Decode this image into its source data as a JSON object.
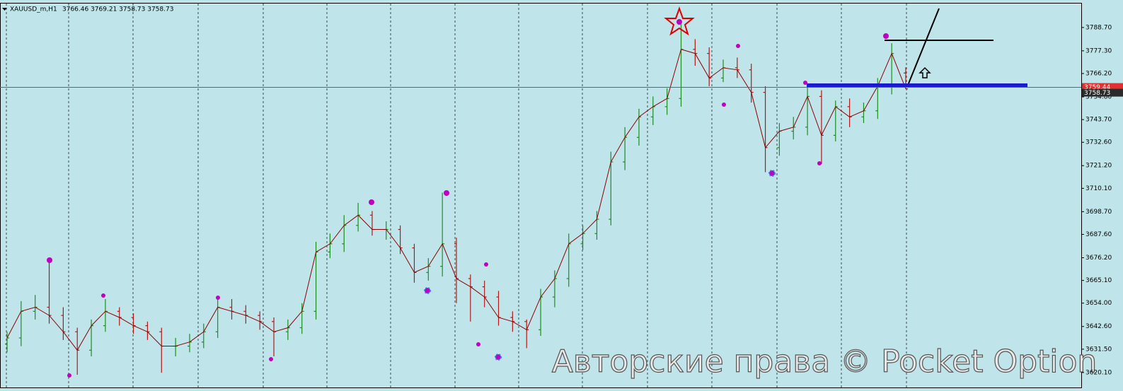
{
  "chart_data": {
    "type": "ohlc",
    "symbol": "XAUUSD_m,H1",
    "quote": "3766.46 3769.21 3758.73 3758.73",
    "watermark": "Авторские права © Pocket Option",
    "up_color": "#1e8c1e",
    "down_color": "#b01818",
    "open": [
      3634,
      3637,
      3650,
      3652,
      3648,
      3640,
      3631,
      3643,
      3650,
      3647,
      3643,
      3640,
      3633,
      3633,
      3635,
      3640,
      3652,
      3650,
      3648,
      3645,
      3640,
      3642,
      3650,
      3679,
      3683,
      3692,
      3697,
      3690,
      3690,
      3681,
      3669,
      3672,
      3683,
      3666,
      3662,
      3657,
      3647,
      3645,
      3641,
      3657,
      3666,
      3683,
      3688,
      3695,
      3723,
      3735,
      3745,
      3750,
      3754,
      3778,
      3776,
      3764,
      3769,
      3768,
      3757,
      3730,
      3738,
      3740,
      3755,
      3736,
      3750,
      3745,
      3748,
      3760,
      3766.46
    ],
    "high": [
      3640,
      3655,
      3658,
      3675,
      3652,
      3642,
      3646,
      3656,
      3652,
      3649,
      3645,
      3642,
      3637,
      3639,
      3644,
      3657,
      3656,
      3653,
      3650,
      3647,
      3646,
      3654,
      3684,
      3688,
      3697,
      3703,
      3699,
      3694,
      3692,
      3683,
      3676,
      3708,
      3686,
      3668,
      3665,
      3660,
      3650,
      3646,
      3661,
      3670,
      3688,
      3692,
      3699,
      3728,
      3740,
      3749,
      3755,
      3759,
      3792,
      3783,
      3779,
      3773,
      3774,
      3771,
      3760,
      3742,
      3745,
      3760,
      3758,
      3753,
      3754,
      3752,
      3764,
      3781,
      3769.21
    ],
    "low": [
      3630,
      3633,
      3646,
      3644,
      3636,
      3619,
      3628,
      3640,
      3643,
      3639,
      3636,
      3620,
      3628,
      3630,
      3632,
      3637,
      3646,
      3644,
      3641,
      3628,
      3636,
      3639,
      3646,
      3676,
      3679,
      3689,
      3687,
      3685,
      3678,
      3664,
      3665,
      3667,
      3654,
      3645,
      3652,
      3643,
      3640,
      3632,
      3638,
      3652,
      3662,
      3680,
      3685,
      3692,
      3719,
      3731,
      3741,
      3746,
      3750,
      3770,
      3760,
      3762,
      3764,
      3752,
      3718,
      3726,
      3734,
      3736,
      3722,
      3733,
      3740,
      3742,
      3744,
      3756,
      3758.73
    ],
    "close": [
      3637,
      3650,
      3652,
      3648,
      3640,
      3631,
      3643,
      3650,
      3647,
      3643,
      3640,
      3633,
      3633,
      3635,
      3640,
      3652,
      3650,
      3648,
      3645,
      3640,
      3642,
      3650,
      3679,
      3683,
      3692,
      3697,
      3690,
      3690,
      3681,
      3669,
      3672,
      3683,
      3666,
      3662,
      3657,
      3647,
      3645,
      3641,
      3657,
      3666,
      3683,
      3688,
      3695,
      3723,
      3735,
      3745,
      3750,
      3754,
      3778,
      3776,
      3764,
      3769,
      3768,
      3757,
      3730,
      3738,
      3740,
      3755,
      3736,
      3750,
      3745,
      3748,
      3760,
      3776,
      3758.73
    ],
    "ylim": [
      3612.8,
      3800.4
    ],
    "yticks": [
      {
        "value": 3788.7,
        "label": "3788.70"
      },
      {
        "value": 3777.3,
        "label": "3777.30"
      },
      {
        "value": 3766.2,
        "label": "3766.20"
      },
      {
        "value": 3754.8,
        "label": "3754.80"
      },
      {
        "value": 3743.7,
        "label": "3743.70"
      },
      {
        "value": 3732.6,
        "label": "3732.60"
      },
      {
        "value": 3721.2,
        "label": "3721.20"
      },
      {
        "value": 3710.1,
        "label": "3710.10"
      },
      {
        "value": 3698.7,
        "label": "3698.70"
      },
      {
        "value": 3687.6,
        "label": "3687.60"
      },
      {
        "value": 3676.2,
        "label": "3676.20"
      },
      {
        "value": 3665.1,
        "label": "3665.10"
      },
      {
        "value": 3654,
        "label": "3654.00"
      },
      {
        "value": 3642.6,
        "label": "3642.60"
      },
      {
        "value": 3631.5,
        "label": "3631.50"
      },
      {
        "value": 3620.1,
        "label": "3620.10"
      }
    ],
    "price_line": {
      "value": 3759.44,
      "label": "3759.44",
      "color": "#e03030"
    },
    "current_price": {
      "value": 3758.73,
      "label": "3758.73",
      "color": "#2b2b2b"
    }
  }
}
